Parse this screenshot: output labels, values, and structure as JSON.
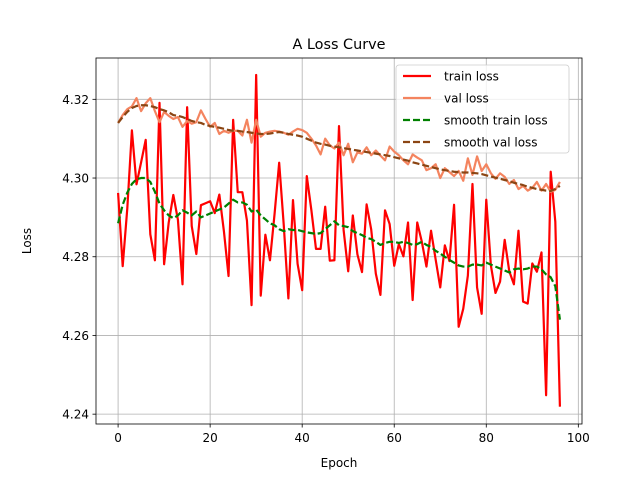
{
  "chart_data": {
    "type": "line",
    "title": "A Loss Curve",
    "xlabel": "Epoch",
    "ylabel": "Loss",
    "xlim": [
      -4.8,
      100.8
    ],
    "ylim": [
      4.2375,
      4.3305
    ],
    "xticks": [
      0,
      20,
      40,
      60,
      80,
      100
    ],
    "yticks": [
      4.24,
      4.26,
      4.28,
      4.3,
      4.32
    ],
    "ytick_labels": [
      "4.24",
      "4.26",
      "4.28",
      "4.30",
      "4.32"
    ],
    "grid": true,
    "legend_position": "top-right",
    "series": [
      {
        "name": "train loss",
        "color": "#ff0000",
        "style": "solid",
        "values": [
          4.2962,
          4.2776,
          4.2923,
          4.3121,
          4.2984,
          4.304,
          4.3097,
          4.2857,
          4.2791,
          4.3191,
          4.2781,
          4.2887,
          4.2957,
          4.2894,
          4.273,
          4.318,
          4.2878,
          4.2807,
          4.2931,
          4.2936,
          4.2941,
          4.2911,
          4.2958,
          4.2864,
          4.2751,
          4.3148,
          4.2964,
          4.2964,
          4.2892,
          4.2677,
          4.3262,
          4.2701,
          4.2856,
          4.2791,
          4.2909,
          4.3039,
          4.288,
          4.2694,
          4.2944,
          4.2782,
          4.2715,
          4.3005,
          4.2918,
          4.282,
          4.282,
          4.2927,
          4.279,
          4.2791,
          4.3132,
          4.2868,
          4.2763,
          4.2905,
          4.2806,
          4.2761,
          4.2933,
          4.2869,
          4.2757,
          4.2703,
          4.2918,
          4.2883,
          4.2777,
          4.2832,
          4.2801,
          4.2887,
          4.269,
          4.2887,
          4.2838,
          4.2775,
          4.2866,
          4.2793,
          4.2722,
          4.2829,
          4.2789,
          4.2932,
          4.2622,
          4.2668,
          4.2752,
          4.2985,
          4.2722,
          4.2655,
          4.2945,
          4.2778,
          4.2708,
          4.2737,
          4.2843,
          4.2763,
          4.273,
          4.2866,
          4.2686,
          4.2681,
          4.2783,
          4.2762,
          4.2811,
          4.2448,
          4.3016,
          4.2889,
          4.2419
        ]
      },
      {
        "name": "val loss",
        "color": "#f4845f",
        "style": "solid",
        "values": [
          4.314,
          4.316,
          4.3175,
          4.3182,
          4.3203,
          4.317,
          4.319,
          4.3203,
          4.317,
          4.3142,
          4.3168,
          4.3158,
          4.315,
          4.3155,
          4.313,
          4.3145,
          4.3138,
          4.3142,
          4.3172,
          4.315,
          4.313,
          4.314,
          4.3112,
          4.312,
          4.3115,
          4.312,
          4.312,
          4.3108,
          4.3148,
          4.309,
          4.3148,
          4.3105,
          4.3115,
          4.3118,
          4.312,
          4.3118,
          4.3115,
          4.311,
          4.3118,
          4.3125,
          4.3122,
          4.3115,
          4.31,
          4.3083,
          4.306,
          4.31,
          4.3083,
          4.3075,
          4.309,
          4.3058,
          4.3087,
          4.304,
          4.3065,
          4.3062,
          4.3078,
          4.3058,
          4.307,
          4.3057,
          4.3045,
          4.308,
          4.3067,
          4.3058,
          4.3045,
          4.3035,
          4.306,
          4.3052,
          4.3045,
          4.302,
          4.3025,
          4.3035,
          4.3,
          4.3025,
          4.3015,
          4.3005,
          4.3018,
          4.2993,
          4.305,
          4.3008,
          4.3055,
          4.3018,
          4.3035,
          4.3012,
          4.2998,
          4.3012,
          4.3003,
          4.2985,
          4.2995,
          4.2972,
          4.298,
          4.2968,
          4.2975,
          4.299,
          4.2968,
          4.2985,
          4.2965,
          4.297,
          4.299
        ]
      },
      {
        "name": "smooth train loss",
        "color": "#008000",
        "style": "dashed",
        "values": [
          4.2885,
          4.2932,
          4.2963,
          4.2985,
          4.2997,
          4.3,
          4.3,
          4.299,
          4.2965,
          4.2935,
          4.2918,
          4.2905,
          4.2898,
          4.2905,
          4.2918,
          4.2912,
          4.2905,
          4.2915,
          4.29,
          4.2905,
          4.291,
          4.2915,
          4.292,
          4.2925,
          4.2935,
          4.2945,
          4.2938,
          4.2938,
          4.2932,
          4.2915,
          4.292,
          4.2905,
          4.2895,
          4.2885,
          4.288,
          4.287,
          4.2865,
          4.287,
          4.2868,
          4.2868,
          4.2865,
          4.2862,
          4.286,
          4.2858,
          4.286,
          4.287,
          4.288,
          4.289,
          4.288,
          4.2878,
          4.2875,
          4.2865,
          4.286,
          4.2855,
          4.2848,
          4.2845,
          4.2838,
          4.283,
          4.2835,
          4.2838,
          4.2838,
          4.2835,
          4.2838,
          4.2835,
          4.283,
          4.2832,
          4.2838,
          4.283,
          4.2825,
          4.2815,
          4.2808,
          4.28,
          4.2792,
          4.2785,
          4.2778,
          4.2775,
          4.2775,
          4.278,
          4.278,
          4.2778,
          4.2785,
          4.278,
          4.2775,
          4.277,
          4.2765,
          4.276,
          4.2768,
          4.277,
          4.2768,
          4.277,
          4.2775,
          4.2775,
          4.2768,
          4.2755,
          4.2748,
          4.2725,
          4.264
        ]
      },
      {
        "name": "smooth val loss",
        "color": "#8b4513",
        "style": "dashed",
        "values": [
          4.314,
          4.3155,
          4.3168,
          4.3178,
          4.3183,
          4.3185,
          4.3185,
          4.3183,
          4.318,
          4.3175,
          4.3172,
          4.3167,
          4.316,
          4.3158,
          4.3155,
          4.315,
          4.3145,
          4.3142,
          4.314,
          4.3135,
          4.3132,
          4.313,
          4.3128,
          4.3125,
          4.3122,
          4.312,
          4.312,
          4.3118,
          4.3117,
          4.3115,
          4.3113,
          4.3112,
          4.3112,
          4.3113,
          4.3115,
          4.3117,
          4.3115,
          4.3112,
          4.311,
          4.3108,
          4.3105,
          4.31,
          4.3095,
          4.309,
          4.3087,
          4.3085,
          4.3082,
          4.308,
          4.3078,
          4.3076,
          4.3074,
          4.3072,
          4.307,
          4.3068,
          4.3066,
          4.3064,
          4.3062,
          4.306,
          4.3058,
          4.3056,
          4.3053,
          4.305,
          4.3047,
          4.3044,
          4.304,
          4.3037,
          4.3034,
          4.3031,
          4.3028,
          4.3025,
          4.3022,
          4.302,
          4.3018,
          4.3016,
          4.3015,
          4.3014,
          4.3014,
          4.3013,
          4.3012,
          4.301,
          4.3007,
          4.3004,
          4.3001,
          4.2998,
          4.2995,
          4.2992,
          4.2988,
          4.2985,
          4.2982,
          4.2978,
          4.2975,
          4.2972,
          4.297,
          4.2968,
          4.2967,
          4.2972,
          4.298
        ]
      }
    ]
  }
}
